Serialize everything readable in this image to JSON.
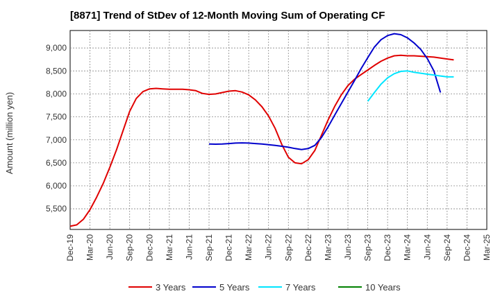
{
  "chart_data": {
    "type": "line",
    "title": "[8871]  Trend of StDev of 12-Month Moving Sum of Operating CF",
    "xlabel": "",
    "ylabel": "Amount (million yen)",
    "x_ticks": [
      "Dec-19",
      "Mar-20",
      "Jun-20",
      "Sep-20",
      "Dec-20",
      "Mar-21",
      "Jun-21",
      "Sep-21",
      "Dec-21",
      "Mar-22",
      "Jun-22",
      "Sep-22",
      "Dec-22",
      "Mar-23",
      "Jun-23",
      "Sep-23",
      "Dec-23",
      "Mar-24",
      "Jun-24",
      "Sep-24",
      "Dec-24",
      "Mar-25"
    ],
    "y_ticks": [
      5500,
      6000,
      6500,
      7000,
      7500,
      8000,
      8500,
      9000
    ],
    "ylim": [
      5050,
      9380
    ],
    "grid": true,
    "legend_position": "bottom",
    "series": [
      {
        "name": "3 Years",
        "color": "#e00000",
        "start_index": 0,
        "values": [
          5120,
          5150,
          5270,
          5480,
          5750,
          6050,
          6400,
          6780,
          7200,
          7620,
          7900,
          8050,
          8110,
          8120,
          8110,
          8100,
          8100,
          8100,
          8090,
          8070,
          8010,
          7990,
          8000,
          8030,
          8060,
          8070,
          8040,
          7980,
          7870,
          7720,
          7520,
          7250,
          6900,
          6620,
          6500,
          6480,
          6570,
          6770,
          7100,
          7430,
          7730,
          7980,
          8180,
          8320,
          8420,
          8520,
          8620,
          8710,
          8780,
          8830,
          8840,
          8830,
          8830,
          8820,
          8810,
          8800,
          8780,
          8760,
          8740
        ]
      },
      {
        "name": "5 Years",
        "color": "#0000cc",
        "start_index": 21,
        "values": [
          6910,
          6905,
          6910,
          6920,
          6930,
          6935,
          6930,
          6920,
          6910,
          6895,
          6880,
          6860,
          6840,
          6810,
          6790,
          6810,
          6880,
          7050,
          7280,
          7540,
          7790,
          8040,
          8290,
          8550,
          8790,
          9020,
          9180,
          9270,
          9310,
          9290,
          9220,
          9110,
          8970,
          8770,
          8500,
          8030
        ]
      },
      {
        "name": "7 Years",
        "color": "#00e5ff",
        "start_index": 45,
        "values": [
          7840,
          8030,
          8210,
          8350,
          8440,
          8490,
          8500,
          8470,
          8450,
          8430,
          8410,
          8390,
          8370,
          8370
        ]
      },
      {
        "name": "10 Years",
        "color": "#008000",
        "start_index": 0,
        "values": []
      }
    ]
  }
}
